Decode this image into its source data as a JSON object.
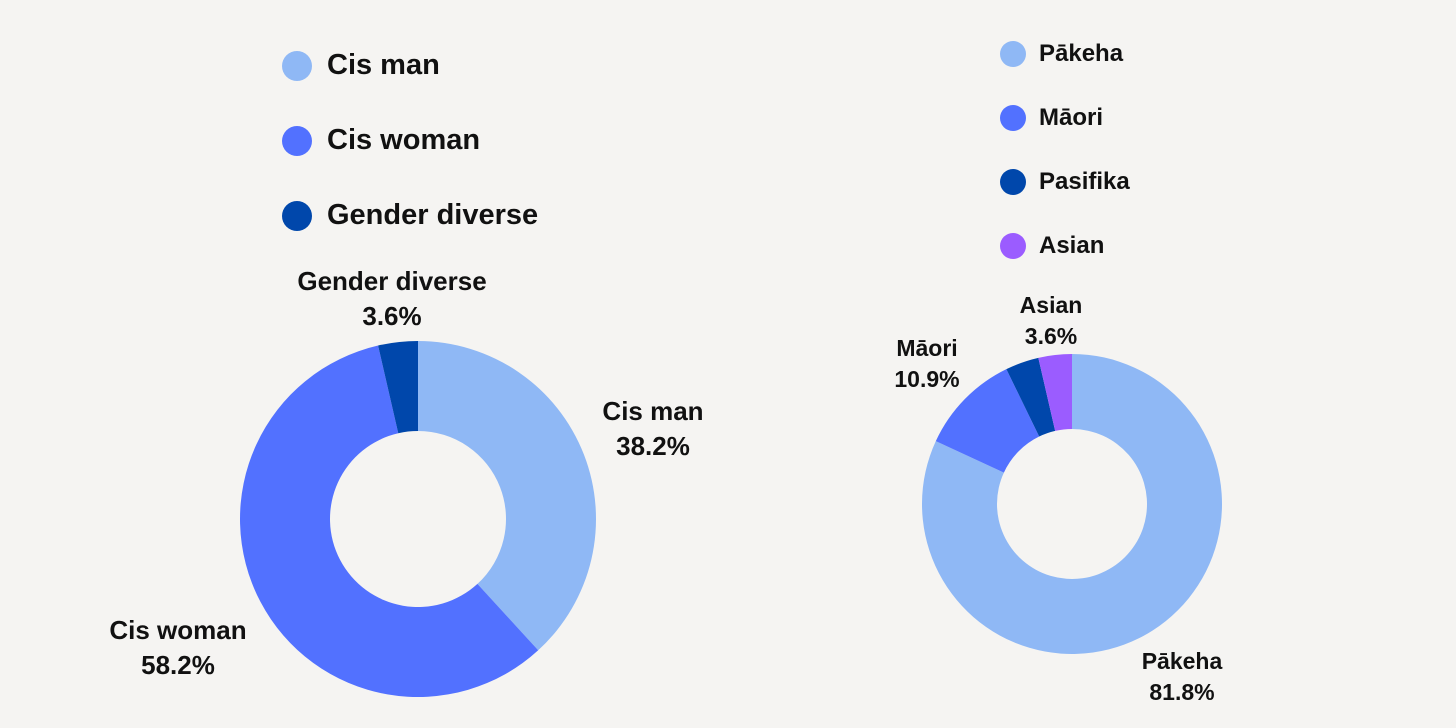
{
  "chart_data": [
    {
      "type": "pie",
      "variant": "donut",
      "categories": [
        "Cis man",
        "Cis woman",
        "Gender diverse"
      ],
      "values": [
        38.2,
        58.2,
        3.6
      ],
      "value_labels": [
        "38.2%",
        "58.2%",
        "3.6%"
      ],
      "colors": [
        "#8fb8f5",
        "#5271ff",
        "#0047ab"
      ],
      "legend": "top"
    },
    {
      "type": "pie",
      "variant": "donut",
      "categories": [
        "Pākeha",
        "Māori",
        "Pasifika",
        "Asian"
      ],
      "values": [
        81.8,
        10.9,
        3.6,
        3.6
      ],
      "value_labels": [
        "81.8%",
        "10.9%",
        "",
        "3.6%"
      ],
      "colors": [
        "#8fb8f5",
        "#5271ff",
        "#0047ab",
        "#9b5cff"
      ],
      "legend": "top"
    }
  ]
}
